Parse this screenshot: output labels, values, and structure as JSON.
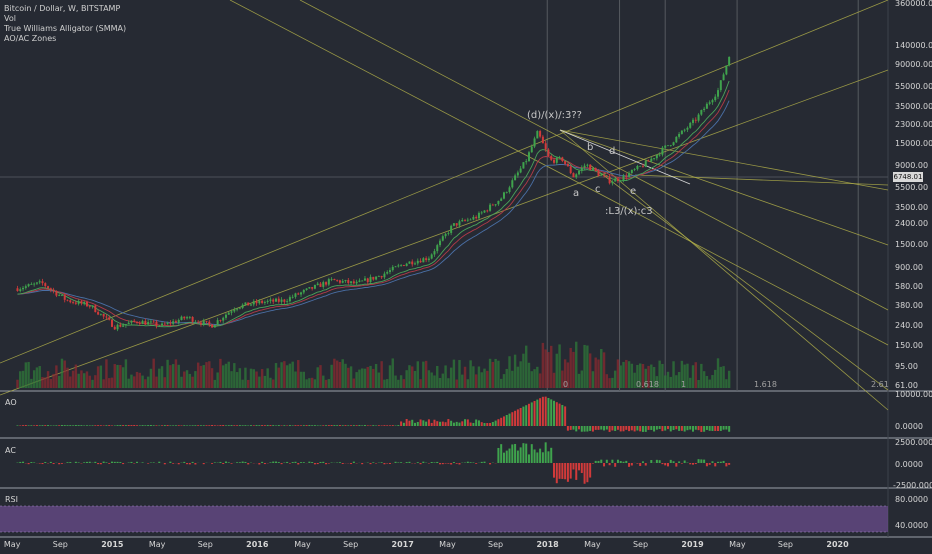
{
  "legend": {
    "line1": "Bitcoin / Dollar, W, BITSTAMP",
    "line2": "Vol",
    "line3": "True Williams Alligator (SMMA)",
    "line4": "AO/AC Zones"
  },
  "price_axis_labels": [
    "360000.00",
    "140000.00",
    "90000.00",
    "55000.00",
    "35000.00",
    "23000.00",
    "15000.00",
    "9000.00",
    "5500.00",
    "3500.00",
    "2400.00",
    "1500.00",
    "900.00",
    "580.00",
    "380.00",
    "240.00",
    "150.00",
    "95.00",
    "61.00"
  ],
  "last_price": "6748.01",
  "time_axis_labels": [
    "May",
    "Sep",
    "2015",
    "May",
    "Sep",
    "2016",
    "May",
    "Sep",
    "2017",
    "May",
    "Sep",
    "2018",
    "May",
    "Sep",
    "2019",
    "May",
    "Sep",
    "2020"
  ],
  "annotations": {
    "wave_top": "(d)/(x)/:3??",
    "a": "a",
    "b": "b",
    "c": "c",
    "d": "d",
    "e": "e",
    "wave_bottom": ":L3/(x):c3",
    "fib_0": "0",
    "fib_0618": "0.618",
    "fib_1": "1",
    "fib_1618": "1.618",
    "fib_261": "2.61"
  },
  "panes": {
    "ao": {
      "title": "AO",
      "scale": [
        "10000.0000",
        "0.0000"
      ]
    },
    "ac": {
      "title": "AC",
      "scale": [
        "2500.0000",
        "0.0000",
        "-2500.0000"
      ]
    },
    "rsi": {
      "title": "RSI",
      "scale": [
        "80.0000",
        "40.0000"
      ]
    }
  },
  "chart_data": {
    "type": "candlestick",
    "symbol": "Bitcoin / Dollar",
    "interval": "W",
    "exchange": "BITSTAMP",
    "y_scale": "log",
    "price_range": [
      61,
      360000
    ],
    "x_range": [
      "2014-04",
      "2020-05"
    ],
    "series": [
      {
        "name": "Bitcoin / Dollar",
        "points": [
          {
            "date": "2014-05",
            "close": 550
          },
          {
            "date": "2014-07",
            "close": 620
          },
          {
            "date": "2014-09",
            "close": 420
          },
          {
            "date": "2014-11",
            "close": 370
          },
          {
            "date": "2015-01",
            "close": 230
          },
          {
            "date": "2015-03",
            "close": 260
          },
          {
            "date": "2015-05",
            "close": 235
          },
          {
            "date": "2015-07",
            "close": 285
          },
          {
            "date": "2015-09",
            "close": 235
          },
          {
            "date": "2015-11",
            "close": 360
          },
          {
            "date": "2016-01",
            "close": 400
          },
          {
            "date": "2016-03",
            "close": 415
          },
          {
            "date": "2016-05",
            "close": 530
          },
          {
            "date": "2016-07",
            "close": 660
          },
          {
            "date": "2016-09",
            "close": 610
          },
          {
            "date": "2016-11",
            "close": 740
          },
          {
            "date": "2017-01",
            "close": 970
          },
          {
            "date": "2017-03",
            "close": 1100
          },
          {
            "date": "2017-05",
            "close": 2300
          },
          {
            "date": "2017-07",
            "close": 2800
          },
          {
            "date": "2017-09",
            "close": 4300
          },
          {
            "date": "2017-11",
            "close": 9900
          },
          {
            "date": "2017-12",
            "close": 19000
          },
          {
            "date": "2018-01",
            "close": 10000
          },
          {
            "date": "2018-02",
            "close": 10300
          },
          {
            "date": "2018-03",
            "close": 7000
          },
          {
            "date": "2018-04",
            "close": 9200
          },
          {
            "date": "2018-05",
            "close": 7500
          },
          {
            "date": "2018-06",
            "close": 6300
          },
          {
            "date": "2018-07",
            "close": 6748
          },
          {
            "date": "2018-09",
            "close": 9500
          },
          {
            "date": "2018-11",
            "close": 15000
          },
          {
            "date": "2019-01",
            "close": 25000
          },
          {
            "date": "2019-03",
            "close": 50000
          },
          {
            "date": "2019-04",
            "close": 120000
          }
        ]
      }
    ],
    "indicators": [
      "Vol",
      "True Williams Alligator (SMMA)",
      "AO/AC Zones",
      "AO",
      "AC",
      "RSI"
    ]
  }
}
